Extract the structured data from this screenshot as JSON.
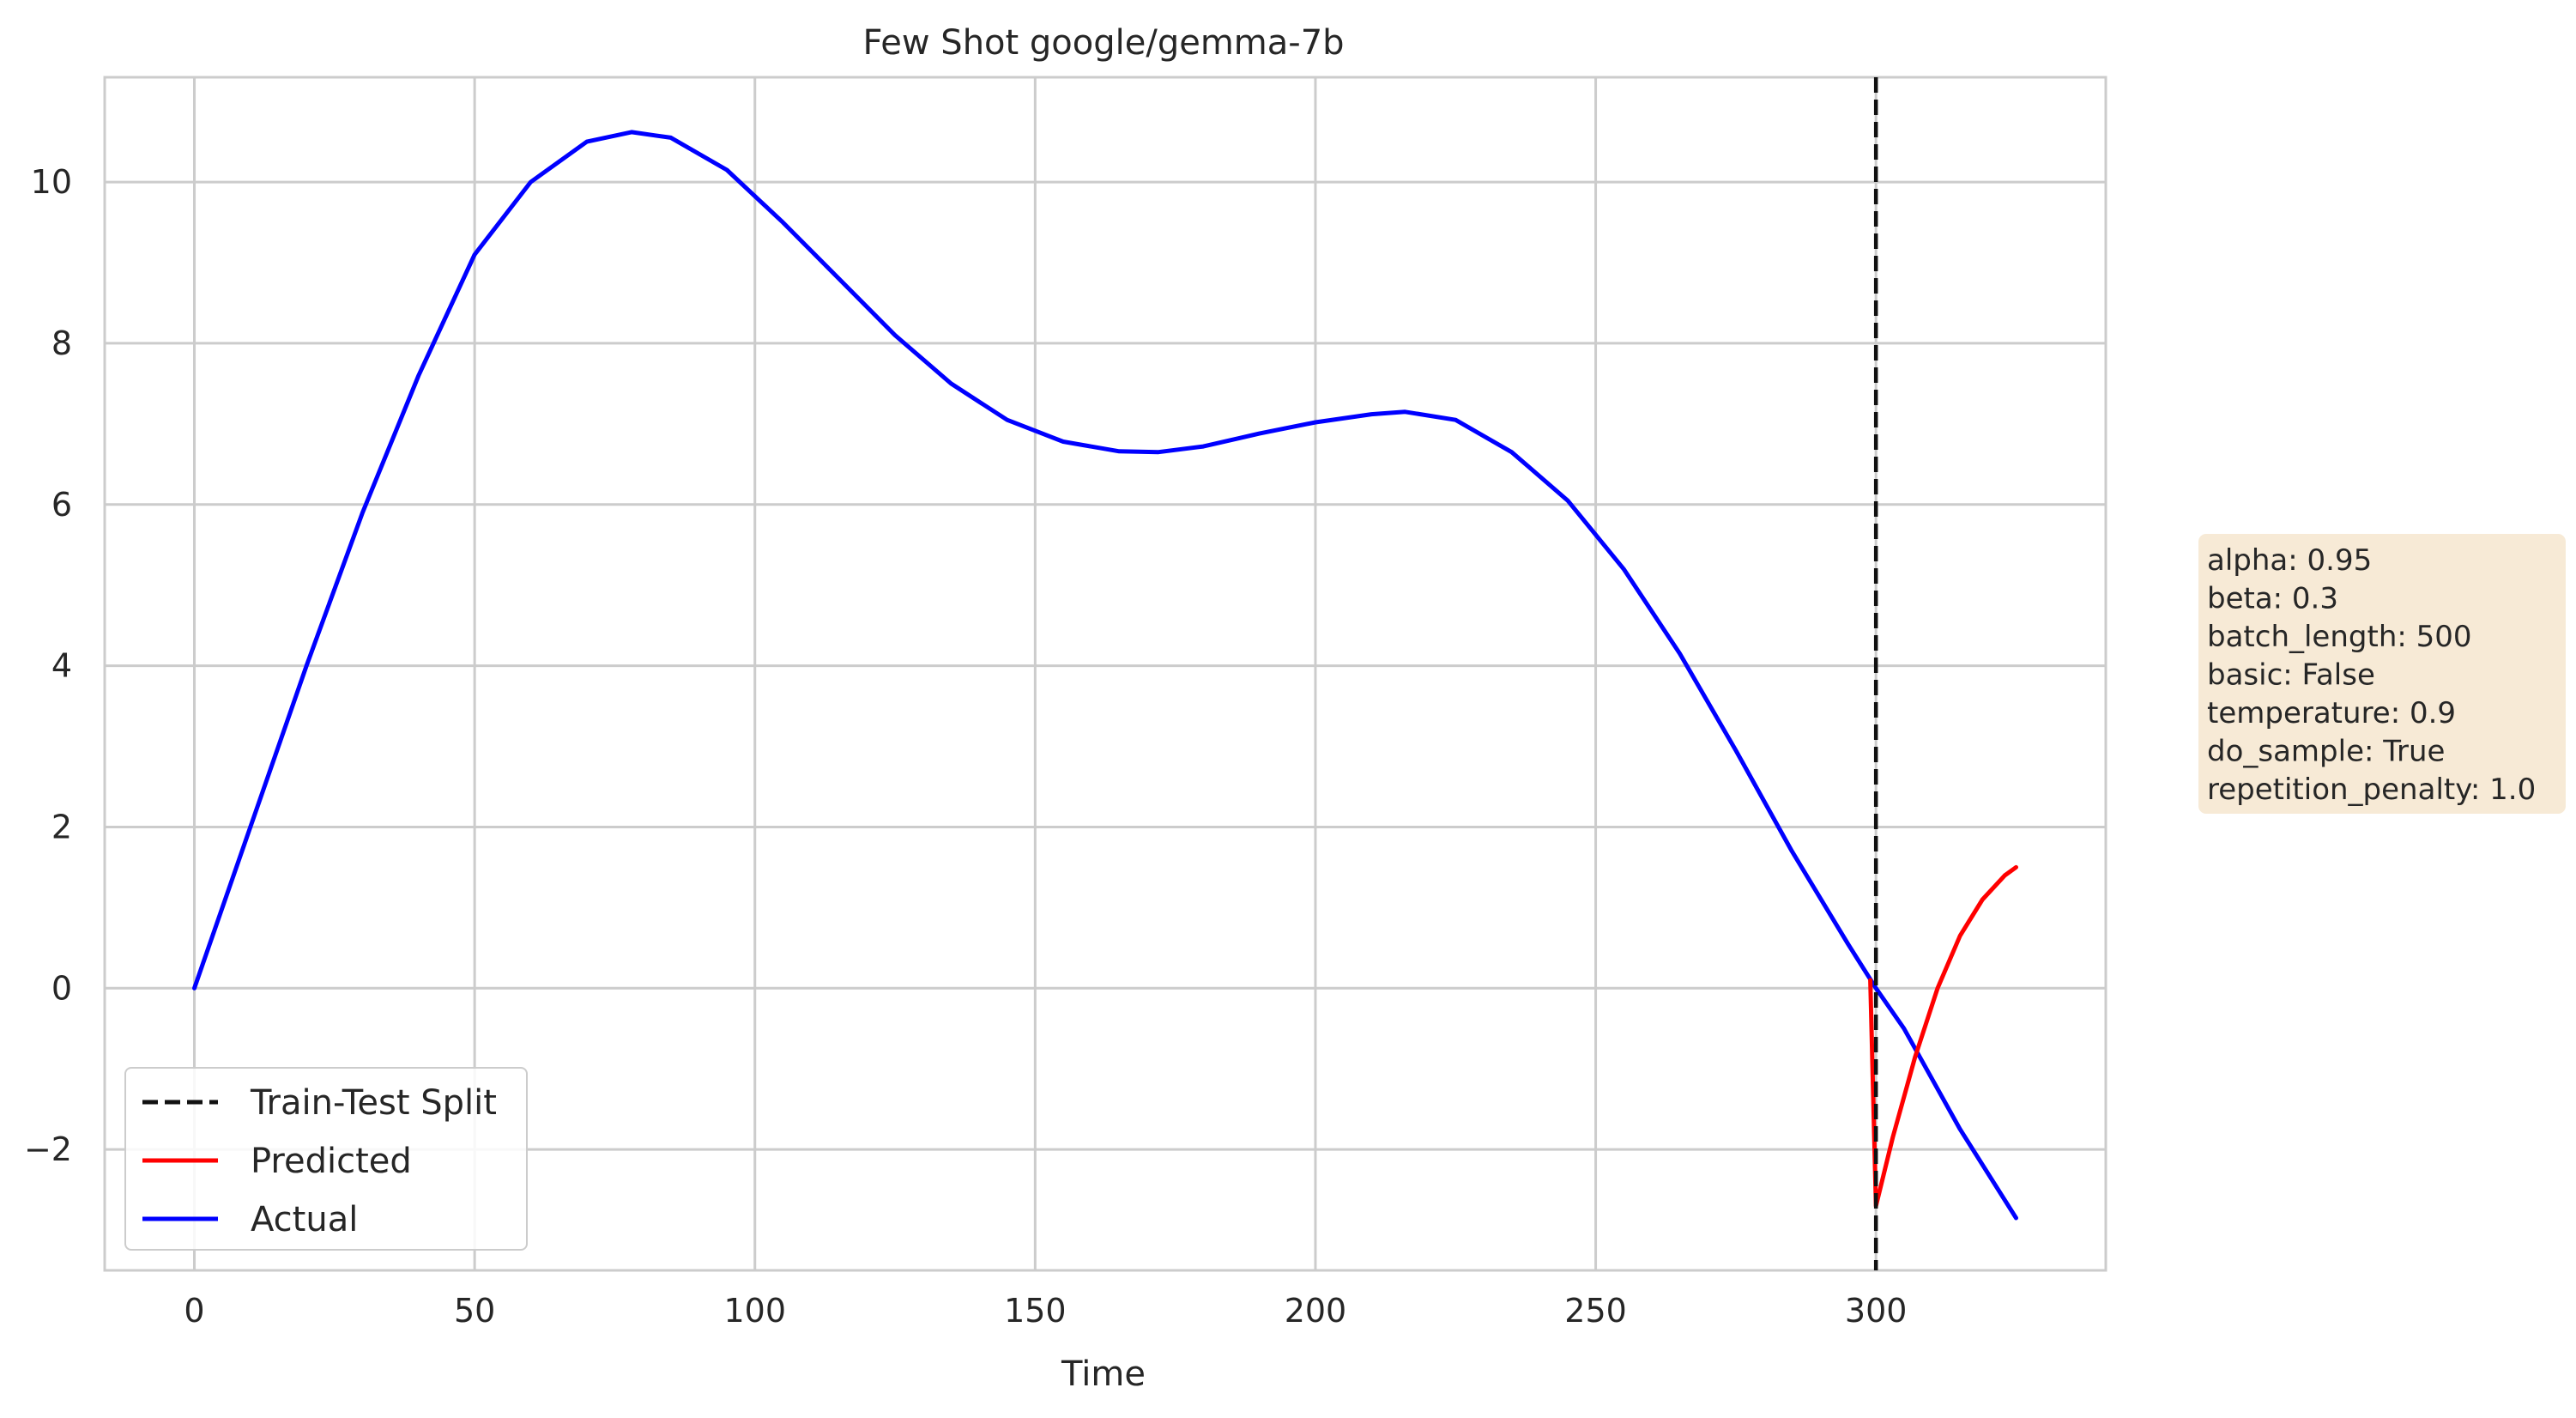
{
  "chart_data": {
    "type": "line",
    "title": "Few Shot google/gemma-7b",
    "xlabel": "Time",
    "ylabel": "",
    "xlim": [
      -16,
      341
    ],
    "ylim": [
      -3.5,
      11.3
    ],
    "x_ticks": [
      0,
      50,
      100,
      150,
      200,
      250,
      300
    ],
    "y_ticks": [
      -2,
      0,
      2,
      4,
      6,
      8,
      10
    ],
    "x_tick_labels": [
      "0",
      "50",
      "100",
      "150",
      "200",
      "250",
      "300"
    ],
    "y_tick_labels": [
      "−2",
      "0",
      "2",
      "4",
      "6",
      "8",
      "10"
    ],
    "grid": true,
    "legend_position": "lower left",
    "split": {
      "name": "Train-Test Split",
      "x": 300,
      "color": "#111111",
      "style": "dashed"
    },
    "series": [
      {
        "name": "Actual",
        "color": "#0000ff",
        "x": [
          0,
          10,
          20,
          30,
          40,
          50,
          60,
          70,
          78,
          85,
          95,
          105,
          115,
          125,
          135,
          145,
          155,
          165,
          172,
          180,
          190,
          200,
          210,
          216,
          225,
          235,
          245,
          255,
          265,
          275,
          285,
          295,
          300,
          305,
          315,
          325
        ],
        "y": [
          0,
          2.0,
          4.0,
          5.9,
          7.6,
          9.1,
          10.0,
          10.5,
          10.62,
          10.55,
          10.15,
          9.5,
          8.8,
          8.1,
          7.5,
          7.05,
          6.78,
          6.66,
          6.65,
          6.72,
          6.88,
          7.02,
          7.12,
          7.15,
          7.05,
          6.65,
          6.05,
          5.2,
          4.15,
          2.95,
          1.7,
          0.55,
          0.0,
          -0.5,
          -1.75,
          -2.85
        ]
      },
      {
        "name": "Predicted",
        "color": "#ff0000",
        "x": [
          299,
          300,
          303,
          307,
          311,
          315,
          319,
          323,
          325
        ],
        "y": [
          0.1,
          -2.7,
          -1.85,
          -0.85,
          0.0,
          0.65,
          1.1,
          1.4,
          1.5
        ]
      }
    ]
  },
  "legend": {
    "items": [
      {
        "label": "Train-Test Split",
        "color": "#111111",
        "style": "dashed"
      },
      {
        "label": "Predicted",
        "color": "#ff0000",
        "style": "solid"
      },
      {
        "label": "Actual",
        "color": "#0000ff",
        "style": "solid"
      }
    ]
  },
  "info_box": {
    "background": "#f7ead6",
    "lines": [
      "alpha: 0.95",
      "beta: 0.3",
      "batch_length: 500",
      "basic: False",
      "temperature: 0.9",
      "do_sample: True",
      "repetition_penalty: 1.0"
    ]
  },
  "colors": {
    "grid": "#cccccc",
    "frame": "#cccccc",
    "text": "#262626"
  }
}
